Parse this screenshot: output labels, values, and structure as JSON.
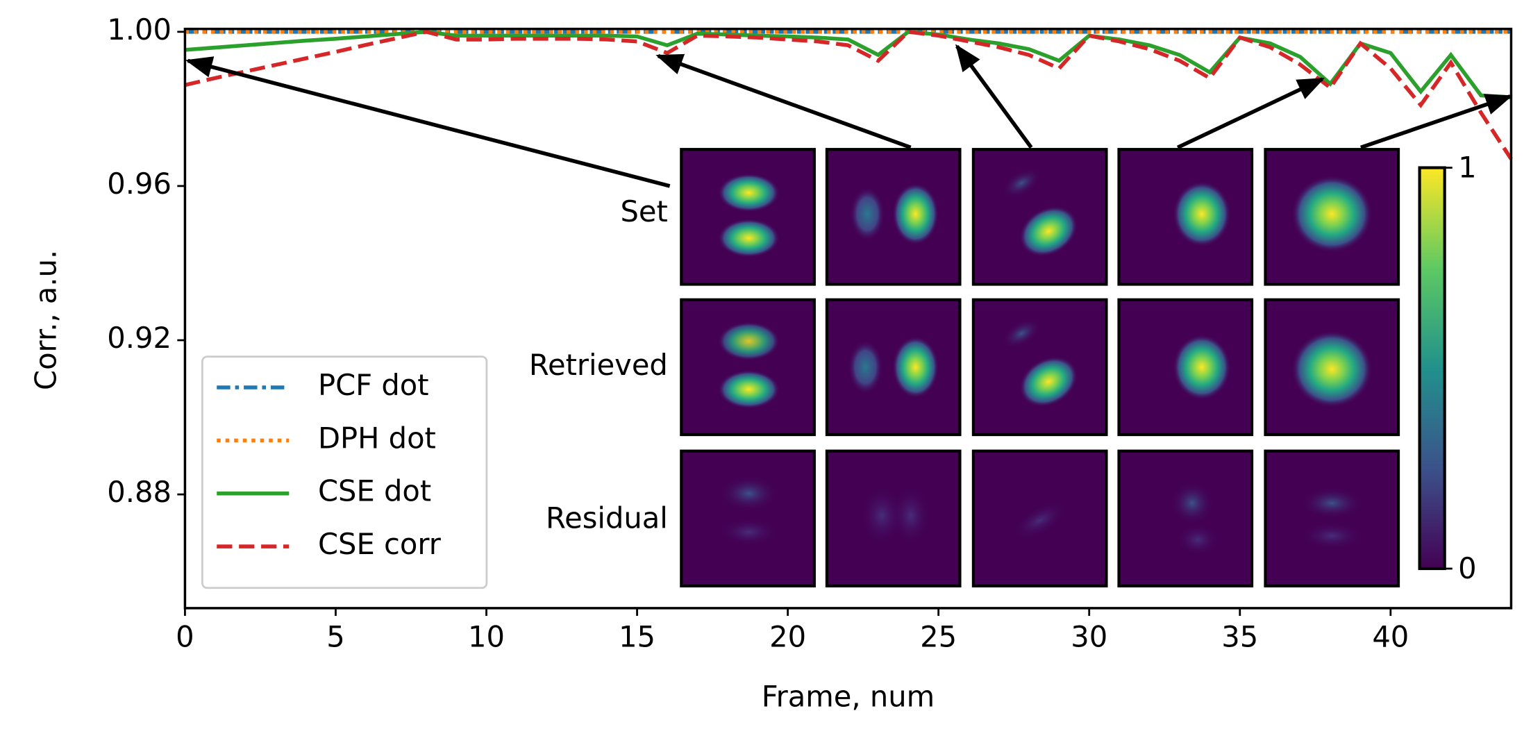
{
  "chart_data": {
    "type": "line",
    "x_label": "Frame, num",
    "y_label": "Corr., a.u.",
    "x": [
      0,
      1,
      2,
      3,
      4,
      5,
      6,
      7,
      8,
      9,
      10,
      11,
      12,
      13,
      14,
      15,
      16,
      17,
      18,
      19,
      20,
      21,
      22,
      23,
      24,
      25,
      26,
      27,
      28,
      29,
      30,
      31,
      32,
      33,
      34,
      35,
      36,
      37,
      38,
      39,
      40,
      41,
      42,
      43,
      44
    ],
    "series": [
      {
        "name": "PCF dot",
        "color": "#1f77b4",
        "linestyle": "dashdot",
        "values": [
          1,
          1,
          1,
          1,
          1,
          1,
          1,
          1,
          1,
          1,
          1,
          1,
          1,
          1,
          1,
          1,
          1,
          1,
          1,
          1,
          1,
          1,
          1,
          1,
          1,
          1,
          1,
          1,
          1,
          1,
          1,
          1,
          1,
          1,
          1,
          1,
          1,
          1,
          1,
          1,
          1,
          1,
          1,
          1,
          1
        ]
      },
      {
        "name": "DPH dot",
        "color": "#ff7f0e",
        "linestyle": "dotted",
        "values": [
          1,
          1,
          1,
          1,
          1,
          1,
          1,
          1,
          1,
          1,
          1,
          1,
          1,
          1,
          1,
          1,
          1,
          1,
          1,
          1,
          1,
          1,
          1,
          1,
          1,
          1,
          1,
          1,
          1,
          1,
          1,
          1,
          1,
          1,
          1,
          1,
          1,
          1,
          1,
          1,
          1,
          1,
          1,
          1,
          1
        ]
      },
      {
        "name": "CSE dot",
        "color": "#2ca02c",
        "linestyle": "solid",
        "values": [
          0.9953,
          0.9959,
          0.9965,
          0.9971,
          0.9977,
          0.9982,
          0.9988,
          0.9994,
          1.0,
          0.999,
          0.999,
          0.999,
          0.999,
          0.999,
          0.999,
          0.9988,
          0.9965,
          0.9995,
          0.9993,
          0.999,
          0.9988,
          0.9985,
          0.998,
          0.994,
          1.0,
          0.9993,
          0.998,
          0.997,
          0.9955,
          0.9925,
          0.999,
          0.998,
          0.9965,
          0.994,
          0.9895,
          0.9985,
          0.997,
          0.9935,
          0.9865,
          0.997,
          0.9945,
          0.9845,
          0.994,
          0.9835,
          0.983
        ]
      },
      {
        "name": "CSE corr",
        "color": "#d62728",
        "linestyle": "dashed",
        "values": [
          0.9862,
          0.988,
          0.9897,
          0.9914,
          0.9931,
          0.9948,
          0.9966,
          0.9983,
          1.0,
          0.998,
          0.998,
          0.9982,
          0.9982,
          0.9982,
          0.998,
          0.9975,
          0.9945,
          0.999,
          0.9988,
          0.9985,
          0.998,
          0.9975,
          0.9965,
          0.9925,
          1.0,
          0.999,
          0.9975,
          0.996,
          0.994,
          0.9905,
          0.999,
          0.9975,
          0.9955,
          0.9925,
          0.988,
          0.9985,
          0.996,
          0.9915,
          0.9855,
          0.997,
          0.9905,
          0.981,
          0.992,
          0.979,
          0.967
        ]
      }
    ],
    "xlim": [
      0,
      44
    ],
    "xticks": [
      0,
      5,
      10,
      15,
      20,
      25,
      30,
      35,
      40
    ],
    "ylim": [
      0.8505,
      1.00075
    ],
    "yticks": [
      {
        "value": 1.0,
        "label": "1.00"
      },
      0.96,
      0.92,
      0.88
    ],
    "legend": "lower left",
    "inset": {
      "rows": [
        "Set",
        "Retrieved",
        "Residual"
      ],
      "colorbar_ticks": [
        0,
        1
      ]
    }
  }
}
